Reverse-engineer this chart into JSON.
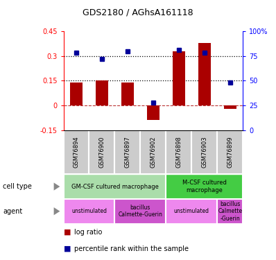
{
  "title": "GDS2180 / AGhsA161118",
  "samples": [
    "GSM76894",
    "GSM76900",
    "GSM76897",
    "GSM76902",
    "GSM76898",
    "GSM76903",
    "GSM76899"
  ],
  "log_ratio": [
    0.14,
    0.15,
    0.14,
    -0.09,
    0.33,
    0.38,
    -0.02
  ],
  "percentile_rank": [
    78,
    72,
    80,
    28,
    81,
    78,
    48
  ],
  "bar_color": "#aa0000",
  "dot_color": "#000099",
  "ylim_left": [
    -0.15,
    0.45
  ],
  "ylim_right": [
    0,
    100
  ],
  "yticks_left": [
    -0.15,
    0,
    0.15,
    0.3,
    0.45
  ],
  "yticks_right": [
    0,
    25,
    50,
    75,
    100
  ],
  "hlines": [
    0.15,
    0.3
  ],
  "cell_type_groups": [
    {
      "label": "GM-CSF cultured macrophage",
      "start": 0,
      "end": 4,
      "color": "#aaddaa"
    },
    {
      "label": "M-CSF cultured\nmacrophage",
      "start": 4,
      "end": 7,
      "color": "#44cc44"
    }
  ],
  "agent_groups": [
    {
      "label": "unstimulated",
      "start": 0,
      "end": 2,
      "color": "#ee88ee"
    },
    {
      "label": "bacillus\nCalmette-Guerin",
      "start": 2,
      "end": 4,
      "color": "#cc55cc"
    },
    {
      "label": "unstimulated",
      "start": 4,
      "end": 6,
      "color": "#ee88ee"
    },
    {
      "label": "bacillus\nCalmette\n-Guerin",
      "start": 6,
      "end": 7,
      "color": "#cc55cc"
    }
  ],
  "legend_items": [
    {
      "label": "log ratio",
      "color": "#aa0000"
    },
    {
      "label": "percentile rank within the sample",
      "color": "#000099"
    }
  ],
  "sample_bg": "#cccccc",
  "cell_type_label_color": "#006600",
  "agent_label_color": "#660066"
}
